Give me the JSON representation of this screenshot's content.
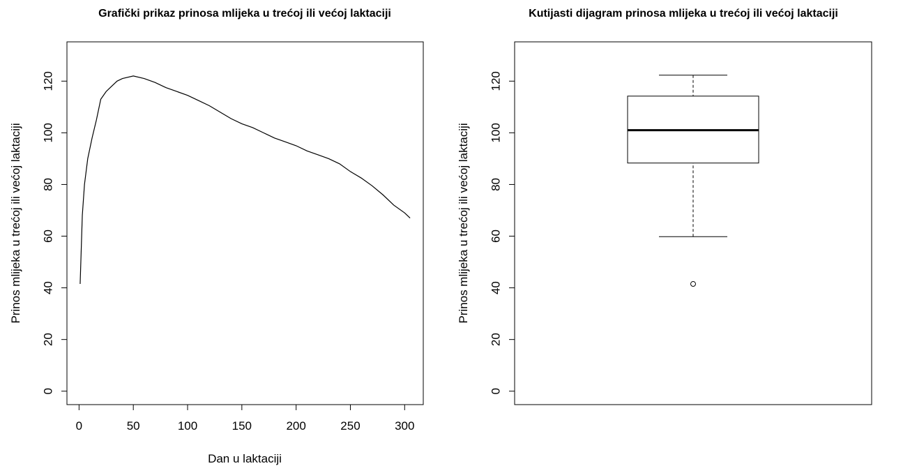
{
  "chart_data": [
    {
      "type": "line",
      "title": "Grafički prikaz prinosa mlijeka u trećoj ili većoj laktaciji",
      "xlabel": "Dan u laktaciji",
      "ylabel": "Prinos mlijeka u trećoj ili većoj laktaciji",
      "color": "#000000",
      "x": [
        1,
        3,
        5,
        8,
        12,
        16,
        20,
        25,
        30,
        35,
        40,
        50,
        60,
        70,
        80,
        90,
        100,
        110,
        120,
        130,
        140,
        150,
        160,
        170,
        180,
        190,
        200,
        210,
        220,
        230,
        240,
        250,
        260,
        270,
        280,
        290,
        300,
        305
      ],
      "values": [
        41.5,
        68,
        80,
        90,
        98,
        105,
        113,
        116,
        118,
        120,
        121,
        122,
        121,
        119.5,
        117.5,
        116,
        114.5,
        112.5,
        110.5,
        108,
        105.5,
        103.5,
        102,
        100,
        98,
        96.5,
        95,
        93,
        91.5,
        90,
        88,
        85,
        82.5,
        79.5,
        76,
        72,
        69,
        67
      ],
      "xlim": [
        -11.16,
        317.16
      ],
      "ylim": [
        -5.2,
        135.2
      ],
      "xticks": [
        0,
        50,
        100,
        150,
        200,
        250,
        300
      ],
      "yticks": [
        0,
        20,
        40,
        60,
        80,
        100,
        120
      ]
    },
    {
      "type": "box",
      "title": "Kutijasti dijagram prinosa mlijeka u trećoj ili većoj laktaciji",
      "ylabel": "Prinos mlijeka u trećoj ili većoj laktaciji",
      "whisker_low": 59.8,
      "q1": 88.3,
      "median": 101,
      "q3": 114.2,
      "whisker_high": 122.3,
      "outliers": [
        41.5
      ],
      "ylim": [
        -5.2,
        135.2
      ],
      "yticks": [
        0,
        20,
        40,
        60,
        80,
        100,
        120
      ]
    }
  ]
}
